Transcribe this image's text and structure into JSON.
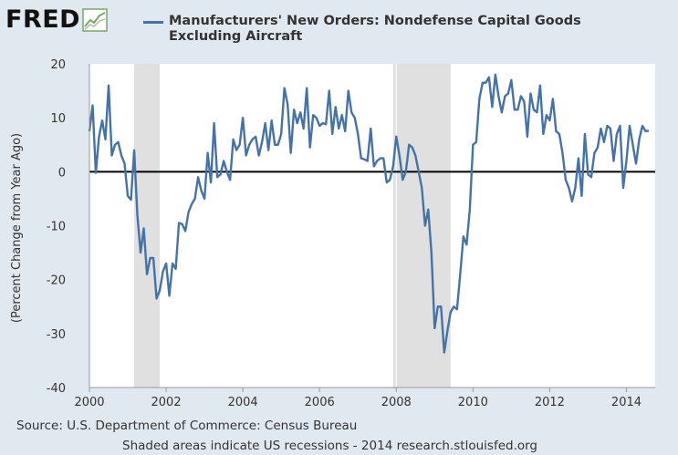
{
  "logo": {
    "text": "FRED"
  },
  "footer": {
    "source": "Source: U.S. Department of Commerce: Census Bureau",
    "note": "Shaded areas indicate US recessions - 2014 research.stlouisfed.org"
  },
  "colors": {
    "line": "#4572a7",
    "recession": "#e0e0e0",
    "plot_bg": "#ffffff",
    "page_bg": "#e1e9f0"
  },
  "chart_data": {
    "type": "line",
    "title": "Manufacturers' New Orders: Nondefense Capital Goods Excluding Aircraft",
    "xlabel": "",
    "ylabel": "(Percent Change from Year Ago)",
    "xlim": [
      2000.0,
      2014.75
    ],
    "ylim": [
      -40,
      20
    ],
    "x_ticks": [
      "2000",
      "2002",
      "2004",
      "2006",
      "2008",
      "2010",
      "2012",
      "2014"
    ],
    "y_ticks": [
      "20",
      "10",
      "0",
      "-10",
      "-20",
      "-30",
      "-40"
    ],
    "zero_line": 0,
    "grid": "vertical-lines-at-year-ticks",
    "recessions": [
      {
        "start": "2001-03",
        "end": "2001-11"
      },
      {
        "start": "2007-12",
        "end": "2009-06"
      }
    ],
    "series": [
      {
        "frequency": "monthly",
        "start": "2000-01",
        "values": [
          7.5,
          12.3,
          -0.2,
          6.5,
          9.5,
          6,
          16,
          3,
          5,
          5.5,
          3,
          1.5,
          -4.5,
          -5.2,
          4,
          -8,
          -15,
          -10.5,
          -19,
          -16,
          -16,
          -23.5,
          -22,
          -18.5,
          -17,
          -23,
          -17,
          -18,
          -9.5,
          -9.7,
          -11,
          -7.5,
          -6,
          -5,
          -1,
          -3.5,
          -5,
          3.5,
          -2,
          9,
          -1,
          -0.5,
          2,
          0,
          -1.5,
          6,
          4,
          5,
          10,
          3,
          5,
          6,
          6.5,
          3,
          5.5,
          9,
          4,
          9.5,
          5,
          5,
          7,
          15.5,
          12.5,
          3.5,
          11.5,
          9,
          11,
          8,
          15.5,
          4.5,
          10.5,
          10,
          8.5,
          9,
          8.8,
          15,
          7,
          12,
          8,
          10.5,
          7.5,
          15,
          11,
          10,
          7,
          2.5,
          2.3,
          2,
          8,
          1,
          2,
          2.5,
          2.5,
          -2,
          -1.5,
          1,
          6.5,
          3,
          -1.5,
          0,
          5,
          4.5,
          3,
          0,
          -3,
          -10,
          -7,
          -15,
          -29,
          -25,
          -25,
          -33.5,
          -29.5,
          -26,
          -25,
          -25.5,
          -19,
          -12,
          -13.5,
          -7,
          5,
          5.5,
          13.5,
          16.5,
          16.5,
          17.5,
          12,
          18,
          14,
          11,
          14,
          14.5,
          17,
          11.5,
          11.5,
          14,
          13,
          6.5,
          14.5,
          11.5,
          11,
          16,
          7,
          10.5,
          9.5,
          13.5,
          7.5,
          7,
          3.5,
          -1.5,
          -3,
          -5.5,
          -3,
          2.5,
          -4.5,
          7,
          -0.5,
          -1,
          3.5,
          4.5,
          8,
          5.5,
          8.5,
          8,
          2,
          7,
          8.5,
          -3,
          2,
          8.5,
          5,
          1.5,
          6,
          8.5,
          7.5,
          7.6
        ]
      }
    ]
  }
}
